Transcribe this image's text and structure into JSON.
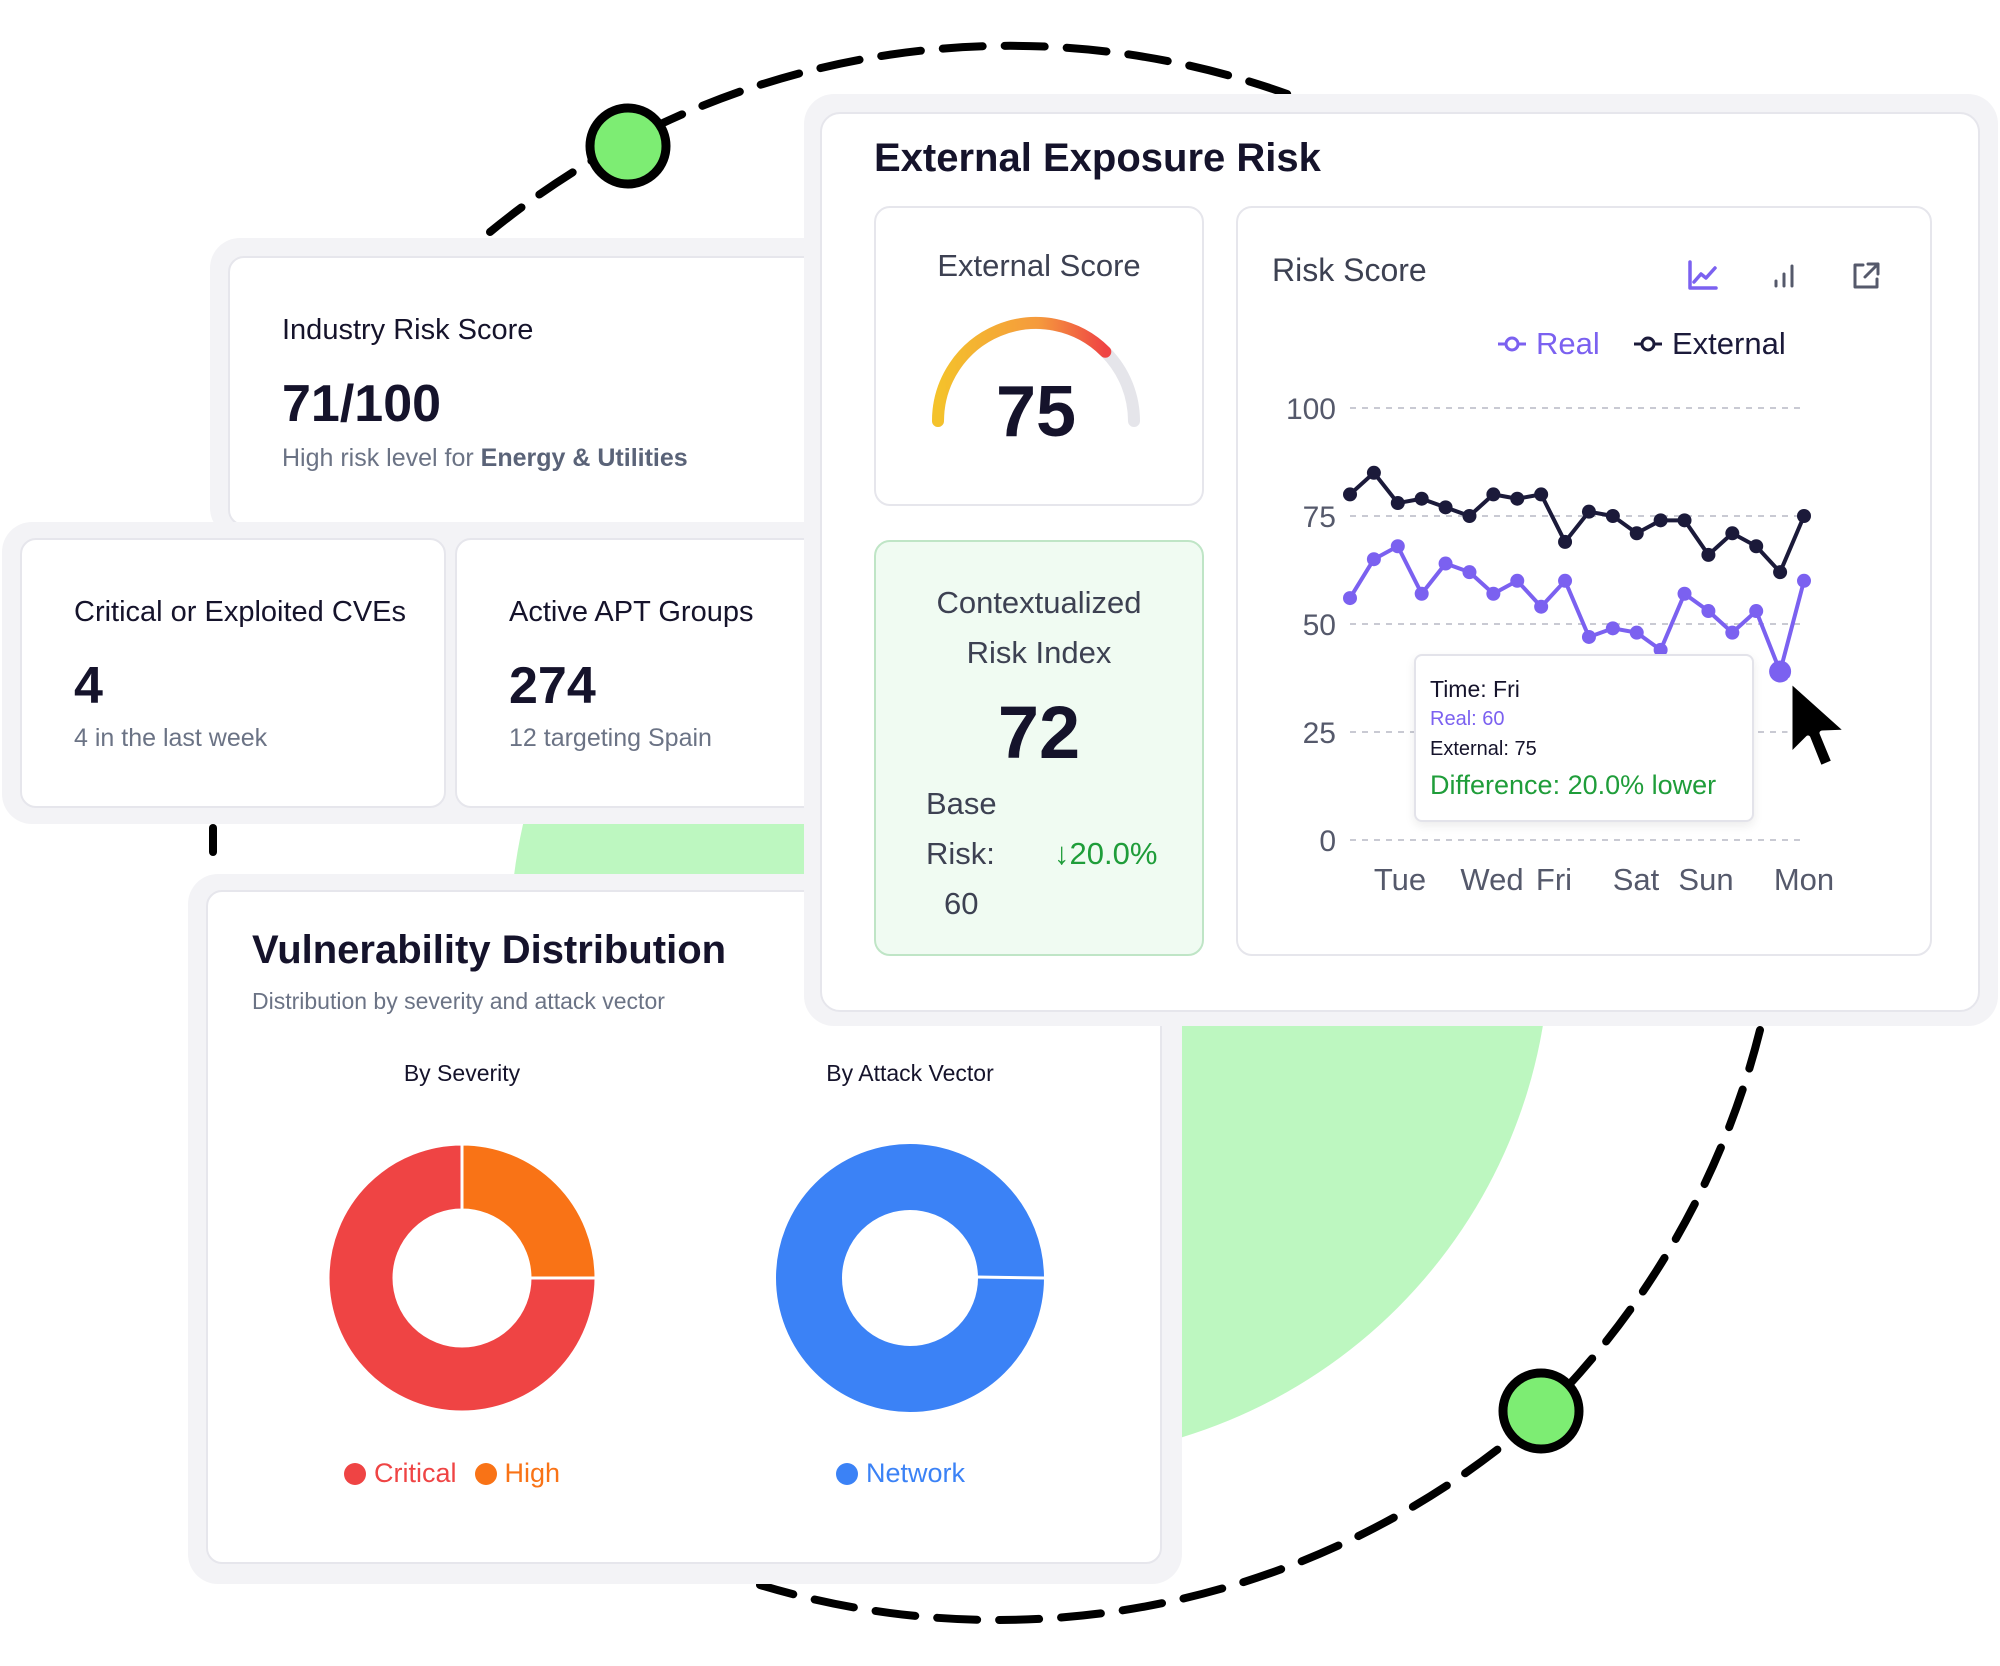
{
  "colors": {
    "accent_green": "#7ded73",
    "light_green": "#bdf7c0",
    "critical": "#ef4444",
    "high": "#f97316",
    "network": "#3b82f6",
    "real": "#7b61f0",
    "external": "#1b1a3a",
    "positive": "#1f9d3a"
  },
  "industry": {
    "title": "Industry Risk Score",
    "value": "71/100",
    "sub_prefix": "High risk level for ",
    "sub_sector": "Energy & Utilities"
  },
  "cves": {
    "title": "Critical or Exploited CVEs",
    "value": "4",
    "sub": "4 in the last week"
  },
  "apt": {
    "title": "Active APT Groups",
    "value": "274",
    "sub": "12 targeting Spain"
  },
  "vuln": {
    "title": "Vulnerability Distribution",
    "subtitle": "Distribution by severity and attack vector",
    "severity_label": "By Severity",
    "vector_label": "By Attack Vector",
    "legend_critical": "Critical",
    "legend_high": "High",
    "legend_network": "Network"
  },
  "exposure": {
    "title": "External Exposure Risk",
    "score_label": "External Score",
    "score_value": "75",
    "score_fraction": 0.75,
    "cri_label_1": "Contextualized",
    "cri_label_2": "Risk Index",
    "cri_value": "72",
    "base_word": "Base",
    "risk_word": "Risk:",
    "base_value": "60",
    "change": "↓20.0%"
  },
  "risk_chart": {
    "label": "Risk Score",
    "icons": [
      "line-chart-icon",
      "bar-chart-icon",
      "external-link-icon"
    ],
    "tooltip": {
      "time": "Time: Fri",
      "real": "Real: 60",
      "external": "External: 75",
      "difference": "Difference: 20.0% lower"
    }
  },
  "chart_data": {
    "type": "line",
    "ylim": [
      0,
      100
    ],
    "y_ticks": [
      "100",
      "75",
      "50",
      "25",
      "0"
    ],
    "x_tick_labels": [
      "Tue",
      "Wed",
      "Fri",
      "Sat",
      "Sun",
      "Mon"
    ],
    "legend_position": "top-right",
    "grid": true,
    "series": [
      {
        "name": "Real",
        "values": [
          56,
          65,
          68,
          57,
          64,
          62,
          57,
          60,
          54,
          60,
          47,
          49,
          48,
          44,
          57,
          53,
          48,
          53,
          39,
          60
        ]
      },
      {
        "name": "External",
        "values": [
          80,
          85,
          78,
          79,
          77,
          75,
          80,
          79,
          80,
          69,
          76,
          75,
          71,
          74,
          74,
          66,
          71,
          68,
          62,
          75
        ]
      }
    ]
  },
  "distribution_data": {
    "severity": [
      {
        "label": "Critical",
        "value": 75
      },
      {
        "label": "High",
        "value": 25
      }
    ],
    "attack_vector": [
      {
        "label": "Network",
        "value": 100
      }
    ]
  }
}
